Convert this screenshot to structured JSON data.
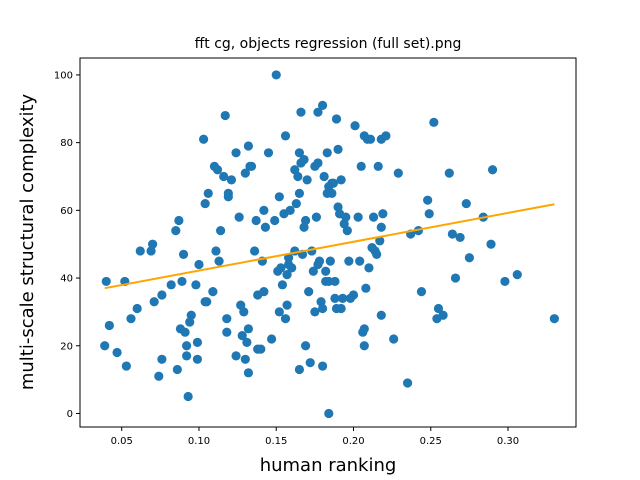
{
  "chart_data": {
    "type": "scatter",
    "title": "fft cg, objects regression (full set).png",
    "xlabel": "human ranking",
    "ylabel": "multi-scale structural complexity",
    "xlim": [
      0.023,
      0.344
    ],
    "ylim": [
      -4,
      105
    ],
    "xticks": [
      "0.05",
      "0.10",
      "0.15",
      "0.20",
      "0.25",
      "0.30"
    ],
    "yticks": [
      "0",
      "20",
      "40",
      "60",
      "80",
      "100"
    ],
    "grid": false,
    "colors": {
      "points": "#1f77b4",
      "trend": "#ffa500"
    },
    "trend_line": {
      "x": [
        0.039,
        0.33
      ],
      "y": [
        37.0,
        61.8
      ]
    },
    "points": [
      [
        0.039,
        20
      ],
      [
        0.04,
        39
      ],
      [
        0.042,
        26
      ],
      [
        0.047,
        18
      ],
      [
        0.052,
        39
      ],
      [
        0.053,
        14
      ],
      [
        0.056,
        28
      ],
      [
        0.06,
        31
      ],
      [
        0.062,
        48
      ],
      [
        0.069,
        48
      ],
      [
        0.07,
        50
      ],
      [
        0.071,
        33
      ],
      [
        0.074,
        11
      ],
      [
        0.076,
        16
      ],
      [
        0.076,
        35
      ],
      [
        0.082,
        38
      ],
      [
        0.085,
        54
      ],
      [
        0.086,
        13
      ],
      [
        0.087,
        57
      ],
      [
        0.088,
        25
      ],
      [
        0.089,
        39
      ],
      [
        0.09,
        47
      ],
      [
        0.091,
        24
      ],
      [
        0.092,
        17
      ],
      [
        0.092,
        20
      ],
      [
        0.093,
        5
      ],
      [
        0.094,
        27
      ],
      [
        0.095,
        29
      ],
      [
        0.098,
        38
      ],
      [
        0.099,
        21
      ],
      [
        0.099,
        16
      ],
      [
        0.1,
        44
      ],
      [
        0.103,
        81
      ],
      [
        0.104,
        62
      ],
      [
        0.104,
        33
      ],
      [
        0.105,
        33
      ],
      [
        0.106,
        65
      ],
      [
        0.109,
        36
      ],
      [
        0.11,
        73
      ],
      [
        0.111,
        48
      ],
      [
        0.112,
        72
      ],
      [
        0.113,
        45
      ],
      [
        0.114,
        54
      ],
      [
        0.116,
        70
      ],
      [
        0.117,
        88
      ],
      [
        0.118,
        28
      ],
      [
        0.118,
        24
      ],
      [
        0.119,
        64
      ],
      [
        0.119,
        65
      ],
      [
        0.121,
        69
      ],
      [
        0.124,
        17
      ],
      [
        0.124,
        77
      ],
      [
        0.126,
        58
      ],
      [
        0.127,
        32
      ],
      [
        0.128,
        23
      ],
      [
        0.129,
        30
      ],
      [
        0.13,
        71
      ],
      [
        0.13,
        16
      ],
      [
        0.131,
        21
      ],
      [
        0.132,
        12
      ],
      [
        0.132,
        79
      ],
      [
        0.132,
        25
      ],
      [
        0.133,
        73
      ],
      [
        0.134,
        73
      ],
      [
        0.136,
        48
      ],
      [
        0.137,
        57
      ],
      [
        0.138,
        35
      ],
      [
        0.138,
        19
      ],
      [
        0.14,
        19
      ],
      [
        0.141,
        45
      ],
      [
        0.142,
        60
      ],
      [
        0.142,
        36
      ],
      [
        0.143,
        55
      ],
      [
        0.145,
        77
      ],
      [
        0.147,
        22
      ],
      [
        0.149,
        57
      ],
      [
        0.15,
        100
      ],
      [
        0.151,
        42
      ],
      [
        0.152,
        64
      ],
      [
        0.152,
        30
      ],
      [
        0.153,
        43
      ],
      [
        0.154,
        38
      ],
      [
        0.155,
        59
      ],
      [
        0.156,
        82
      ],
      [
        0.156,
        28
      ],
      [
        0.157,
        32
      ],
      [
        0.157,
        41
      ],
      [
        0.158,
        44
      ],
      [
        0.158,
        46
      ],
      [
        0.159,
        60
      ],
      [
        0.16,
        43
      ],
      [
        0.162,
        72
      ],
      [
        0.162,
        48
      ],
      [
        0.163,
        62
      ],
      [
        0.164,
        70
      ],
      [
        0.165,
        13
      ],
      [
        0.165,
        65
      ],
      [
        0.165,
        77
      ],
      [
        0.166,
        89
      ],
      [
        0.166,
        74
      ],
      [
        0.167,
        47
      ],
      [
        0.168,
        75
      ],
      [
        0.168,
        55
      ],
      [
        0.169,
        20
      ],
      [
        0.169,
        57
      ],
      [
        0.17,
        69
      ],
      [
        0.171,
        36
      ],
      [
        0.172,
        15
      ],
      [
        0.173,
        48
      ],
      [
        0.174,
        42
      ],
      [
        0.175,
        30
      ],
      [
        0.175,
        73
      ],
      [
        0.176,
        58
      ],
      [
        0.177,
        89
      ],
      [
        0.177,
        44
      ],
      [
        0.177,
        74
      ],
      [
        0.178,
        45
      ],
      [
        0.179,
        33
      ],
      [
        0.18,
        14
      ],
      [
        0.18,
        31
      ],
      [
        0.18,
        91
      ],
      [
        0.181,
        70
      ],
      [
        0.182,
        39
      ],
      [
        0.182,
        42
      ],
      [
        0.183,
        65
      ],
      [
        0.183,
        77
      ],
      [
        0.184,
        67
      ],
      [
        0.184,
        39
      ],
      [
        0.184,
        0
      ],
      [
        0.185,
        45
      ],
      [
        0.186,
        65
      ],
      [
        0.186,
        68
      ],
      [
        0.187,
        68
      ],
      [
        0.188,
        34
      ],
      [
        0.188,
        39
      ],
      [
        0.189,
        87
      ],
      [
        0.189,
        31
      ],
      [
        0.19,
        78
      ],
      [
        0.19,
        61
      ],
      [
        0.191,
        59
      ],
      [
        0.192,
        31
      ],
      [
        0.192,
        69
      ],
      [
        0.193,
        34
      ],
      [
        0.194,
        56
      ],
      [
        0.195,
        58
      ],
      [
        0.196,
        54
      ],
      [
        0.197,
        45
      ],
      [
        0.198,
        34
      ],
      [
        0.2,
        35
      ],
      [
        0.201,
        85
      ],
      [
        0.203,
        58
      ],
      [
        0.204,
        45
      ],
      [
        0.205,
        73
      ],
      [
        0.206,
        24
      ],
      [
        0.207,
        82
      ],
      [
        0.207,
        20
      ],
      [
        0.207,
        25
      ],
      [
        0.208,
        37
      ],
      [
        0.209,
        81
      ],
      [
        0.21,
        43
      ],
      [
        0.211,
        81
      ],
      [
        0.212,
        49
      ],
      [
        0.213,
        58
      ],
      [
        0.214,
        48
      ],
      [
        0.215,
        47
      ],
      [
        0.216,
        73
      ],
      [
        0.217,
        51
      ],
      [
        0.218,
        81
      ],
      [
        0.218,
        29
      ],
      [
        0.218,
        55
      ],
      [
        0.219,
        59
      ],
      [
        0.221,
        82
      ],
      [
        0.226,
        22
      ],
      [
        0.229,
        71
      ],
      [
        0.235,
        9
      ],
      [
        0.237,
        53
      ],
      [
        0.242,
        54
      ],
      [
        0.244,
        36
      ],
      [
        0.248,
        63
      ],
      [
        0.249,
        59
      ],
      [
        0.252,
        86
      ],
      [
        0.254,
        28
      ],
      [
        0.255,
        31
      ],
      [
        0.258,
        29
      ],
      [
        0.262,
        71
      ],
      [
        0.264,
        53
      ],
      [
        0.266,
        40
      ],
      [
        0.269,
        52
      ],
      [
        0.273,
        62
      ],
      [
        0.275,
        46
      ],
      [
        0.284,
        58
      ],
      [
        0.289,
        50
      ],
      [
        0.29,
        72
      ],
      [
        0.298,
        39
      ],
      [
        0.306,
        41
      ],
      [
        0.33,
        28
      ]
    ]
  }
}
